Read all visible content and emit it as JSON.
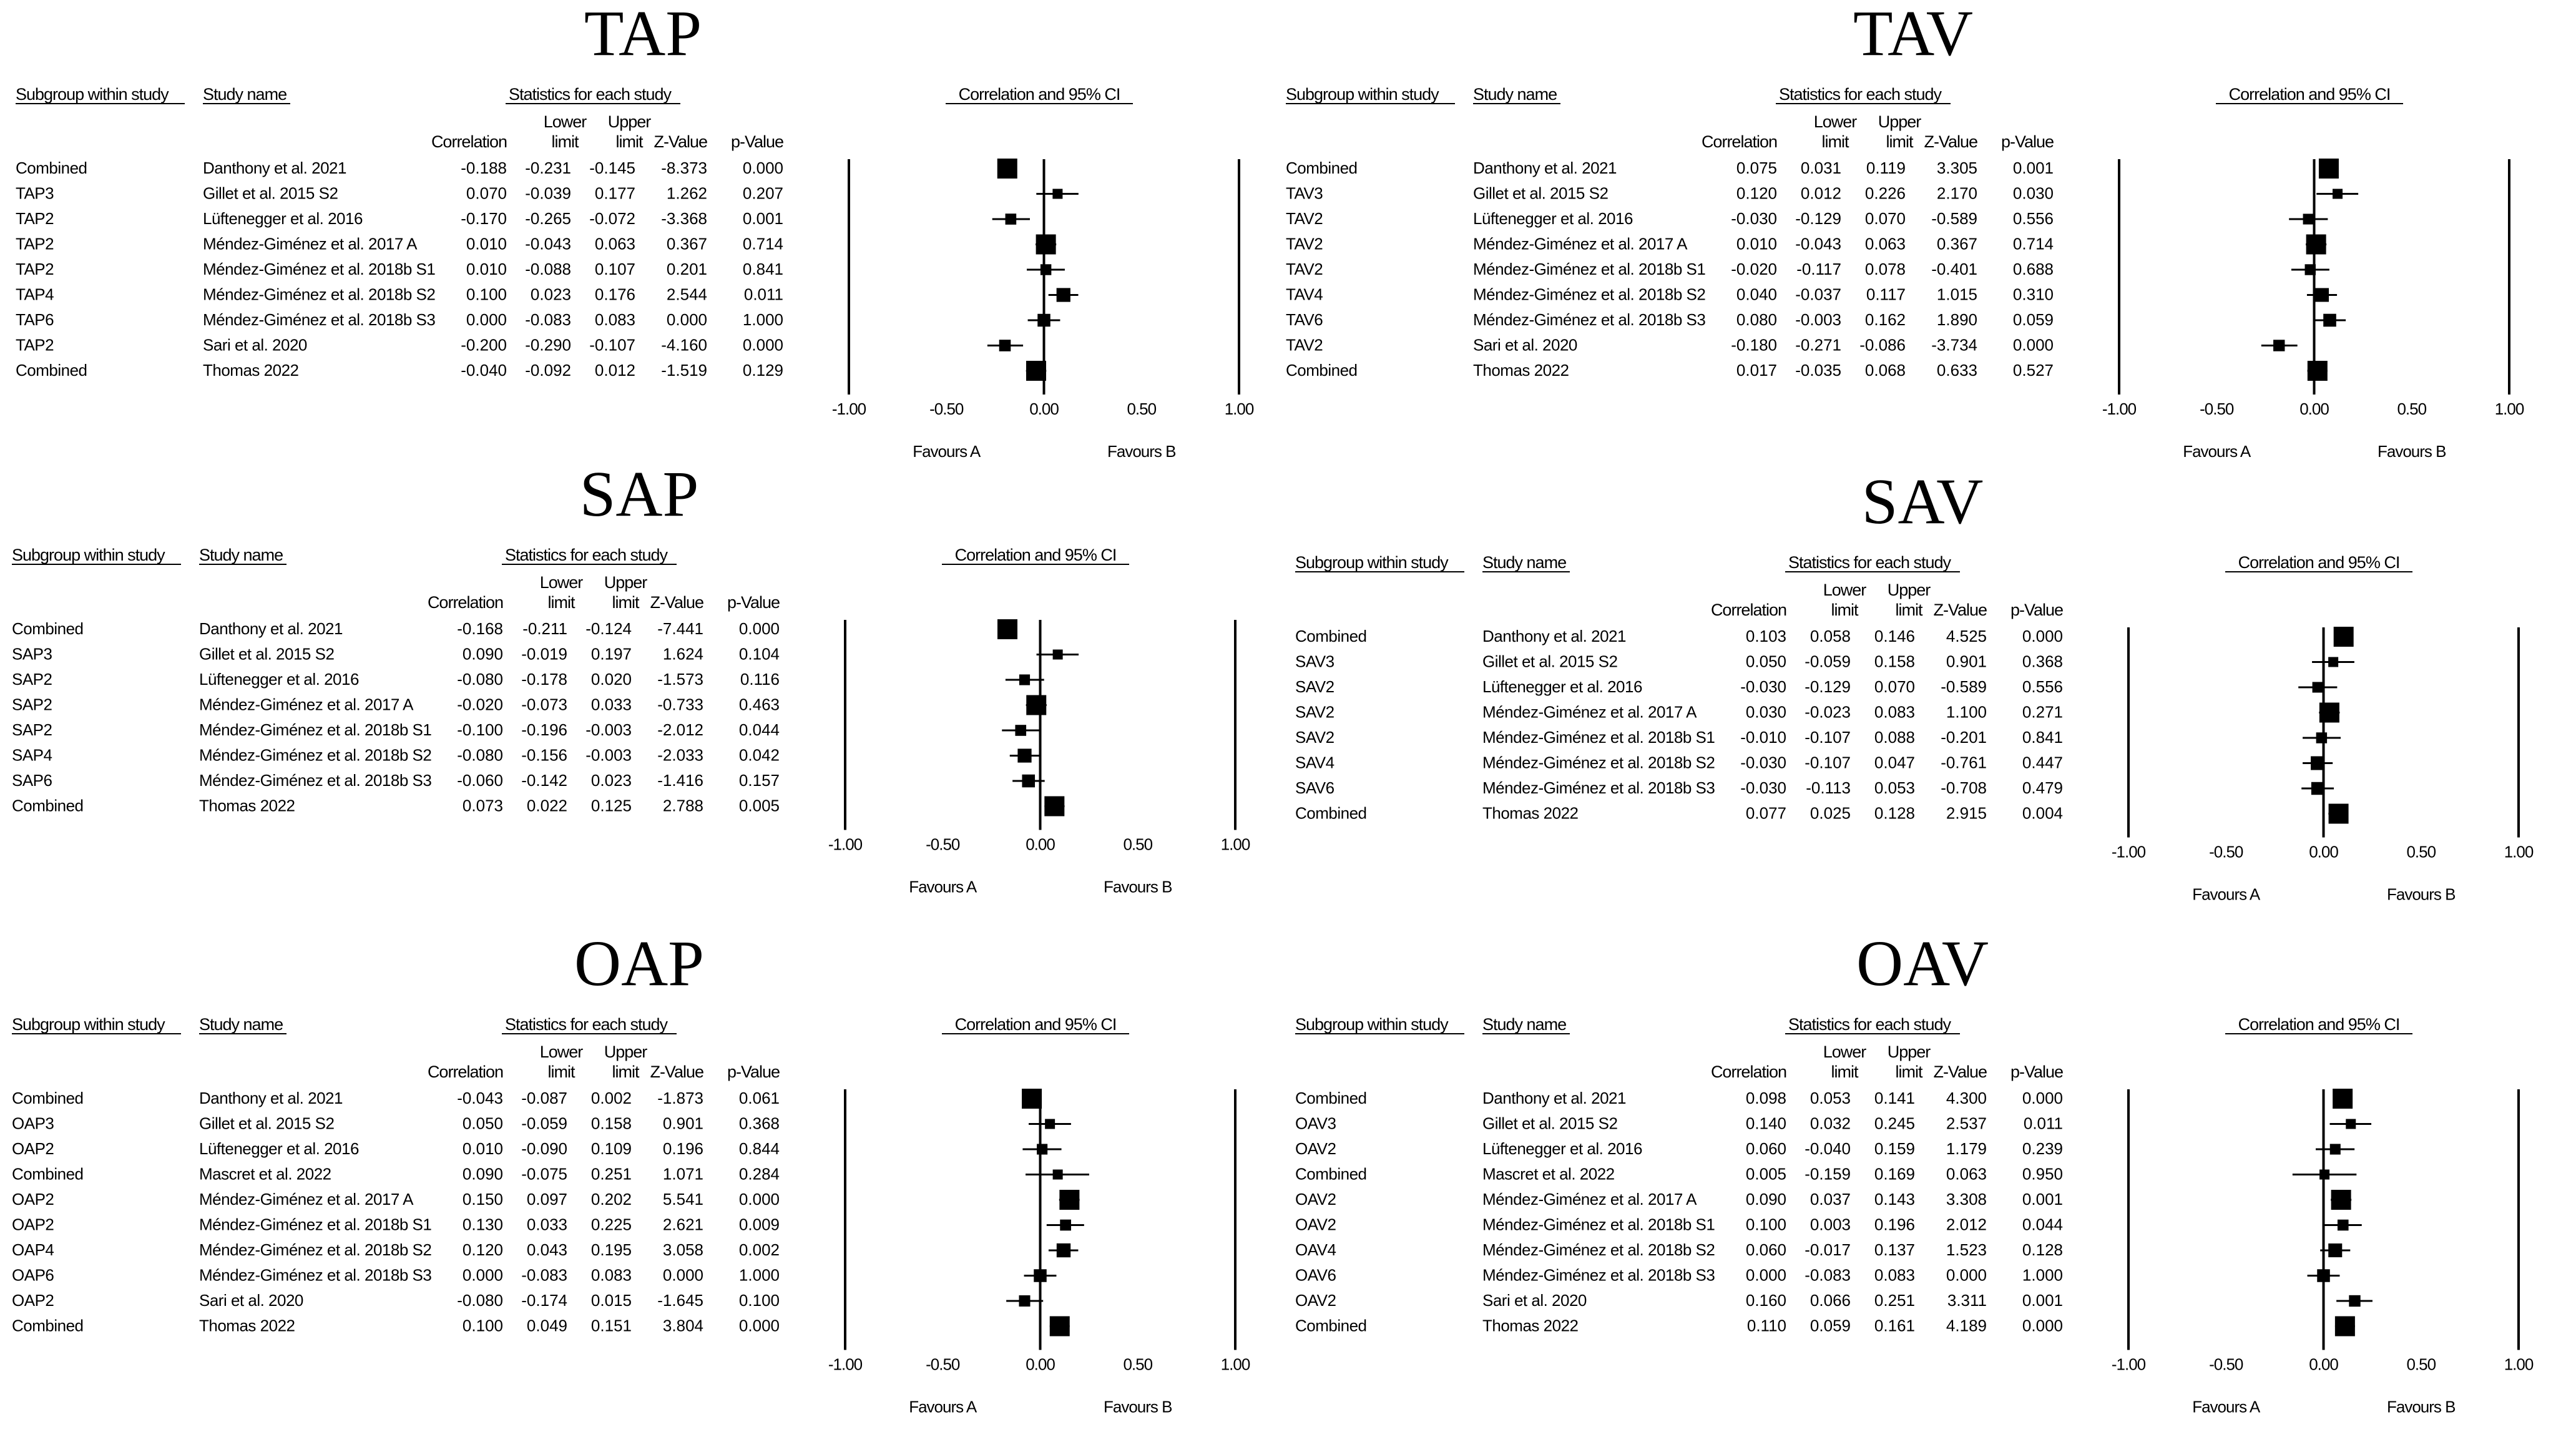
{
  "chart_data": [
    {
      "type": "forest",
      "title": "TAP",
      "headers": {
        "group": "Subgroup within study",
        "study": "Study name",
        "stats": "Statistics for each study",
        "corr": "Correlation",
        "lower_1": "Lower",
        "lower_2": "limit",
        "upper_1": "Upper",
        "upper_2": "limit",
        "z": "Z-Value",
        "p": "p-Value",
        "ci": "Correlation and 95% CI"
      },
      "rows": [
        {
          "group": "Combined",
          "study": "Danthony et al. 2021",
          "corr": -0.188,
          "lower": -0.231,
          "upper": -0.145,
          "z": "-8.373",
          "p": "0.000"
        },
        {
          "group": "TAP3",
          "study": "Gillet et al. 2015 S2",
          "corr": 0.07,
          "lower": -0.039,
          "upper": 0.177,
          "z": "1.262",
          "p": "0.207"
        },
        {
          "group": "TAP2",
          "study": "Lüftenegger et al. 2016",
          "corr": -0.17,
          "lower": -0.265,
          "upper": -0.072,
          "z": "-3.368",
          "p": "0.001"
        },
        {
          "group": "TAP2",
          "study": "Méndez-Giménez et al. 2017 A",
          "corr": 0.01,
          "lower": -0.043,
          "upper": 0.063,
          "z": "0.367",
          "p": "0.714"
        },
        {
          "group": "TAP2",
          "study": "Méndez-Giménez et al. 2018b S1",
          "corr": 0.01,
          "lower": -0.088,
          "upper": 0.107,
          "z": "0.201",
          "p": "0.841"
        },
        {
          "group": "TAP4",
          "study": "Méndez-Giménez et al. 2018b S2",
          "corr": 0.1,
          "lower": 0.023,
          "upper": 0.176,
          "z": "2.544",
          "p": "0.011"
        },
        {
          "group": "TAP6",
          "study": "Méndez-Giménez et al. 2018b S3",
          "corr": 0.0,
          "lower": -0.083,
          "upper": 0.083,
          "z": "0.000",
          "p": "1.000"
        },
        {
          "group": "TAP2",
          "study": "Sari et al. 2020",
          "corr": -0.2,
          "lower": -0.29,
          "upper": -0.107,
          "z": "-4.160",
          "p": "0.000"
        },
        {
          "group": "Combined",
          "study": "Thomas 2022",
          "corr": -0.04,
          "lower": -0.092,
          "upper": 0.012,
          "z": "-1.519",
          "p": "0.129"
        }
      ],
      "axis": {
        "xlim": [
          -1.0,
          1.0
        ],
        "ticks": [
          "-1.00",
          "-0.50",
          "0.00",
          "0.50",
          "1.00"
        ]
      },
      "favours_a": "Favours A",
      "favours_b": "Favours B"
    },
    {
      "type": "forest",
      "title": "TAV",
      "headers": {
        "group": "Subgroup within study",
        "study": "Study name",
        "stats": "Statistics for each study",
        "corr": "Correlation",
        "lower_1": "Lower",
        "lower_2": "limit",
        "upper_1": "Upper",
        "upper_2": "limit",
        "z": "Z-Value",
        "p": "p-Value",
        "ci": "Correlation and 95% CI"
      },
      "rows": [
        {
          "group": "Combined",
          "study": "Danthony et al. 2021",
          "corr": 0.075,
          "lower": 0.031,
          "upper": 0.119,
          "z": "3.305",
          "p": "0.001"
        },
        {
          "group": "TAV3",
          "study": "Gillet et al. 2015 S2",
          "corr": 0.12,
          "lower": 0.012,
          "upper": 0.226,
          "z": "2.170",
          "p": "0.030"
        },
        {
          "group": "TAV2",
          "study": "Lüftenegger et al. 2016",
          "corr": -0.03,
          "lower": -0.129,
          "upper": 0.07,
          "z": "-0.589",
          "p": "0.556"
        },
        {
          "group": "TAV2",
          "study": "Méndez-Giménez et al. 2017 A",
          "corr": 0.01,
          "lower": -0.043,
          "upper": 0.063,
          "z": "0.367",
          "p": "0.714"
        },
        {
          "group": "TAV2",
          "study": "Méndez-Giménez et al. 2018b S1",
          "corr": -0.02,
          "lower": -0.117,
          "upper": 0.078,
          "z": "-0.401",
          "p": "0.688"
        },
        {
          "group": "TAV4",
          "study": "Méndez-Giménez et al. 2018b S2",
          "corr": 0.04,
          "lower": -0.037,
          "upper": 0.117,
          "z": "1.015",
          "p": "0.310"
        },
        {
          "group": "TAV6",
          "study": "Méndez-Giménez et al. 2018b S3",
          "corr": 0.08,
          "lower": -0.003,
          "upper": 0.162,
          "z": "1.890",
          "p": "0.059"
        },
        {
          "group": "TAV2",
          "study": "Sari et al. 2020",
          "corr": -0.18,
          "lower": -0.271,
          "upper": -0.086,
          "z": "-3.734",
          "p": "0.000"
        },
        {
          "group": "Combined",
          "study": "Thomas 2022",
          "corr": 0.017,
          "lower": -0.035,
          "upper": 0.068,
          "z": "0.633",
          "p": "0.527"
        }
      ],
      "axis": {
        "xlim": [
          -1.0,
          1.0
        ],
        "ticks": [
          "-1.00",
          "-0.50",
          "0.00",
          "0.50",
          "1.00"
        ]
      },
      "favours_a": "Favours A",
      "favours_b": "Favours B"
    },
    {
      "type": "forest",
      "title": "SAP",
      "headers": {
        "group": "Subgroup within study",
        "study": "Study name",
        "stats": "Statistics for each study",
        "corr": "Correlation",
        "lower_1": "Lower",
        "lower_2": "limit",
        "upper_1": "Upper",
        "upper_2": "limit",
        "z": "Z-Value",
        "p": "p-Value",
        "ci": "Correlation and 95% CI"
      },
      "rows": [
        {
          "group": "Combined",
          "study": "Danthony et al. 2021",
          "corr": -0.168,
          "lower": -0.211,
          "upper": -0.124,
          "z": "-7.441",
          "p": "0.000"
        },
        {
          "group": "SAP3",
          "study": "Gillet et al. 2015 S2",
          "corr": 0.09,
          "lower": -0.019,
          "upper": 0.197,
          "z": "1.624",
          "p": "0.104"
        },
        {
          "group": "SAP2",
          "study": "Lüftenegger et al. 2016",
          "corr": -0.08,
          "lower": -0.178,
          "upper": 0.02,
          "z": "-1.573",
          "p": "0.116"
        },
        {
          "group": "SAP2",
          "study": "Méndez-Giménez et al. 2017 A",
          "corr": -0.02,
          "lower": -0.073,
          "upper": 0.033,
          "z": "-0.733",
          "p": "0.463"
        },
        {
          "group": "SAP2",
          "study": "Méndez-Giménez et al. 2018b S1",
          "corr": -0.1,
          "lower": -0.196,
          "upper": -0.003,
          "z": "-2.012",
          "p": "0.044"
        },
        {
          "group": "SAP4",
          "study": "Méndez-Giménez et al. 2018b S2",
          "corr": -0.08,
          "lower": -0.156,
          "upper": -0.003,
          "z": "-2.033",
          "p": "0.042"
        },
        {
          "group": "SAP6",
          "study": "Méndez-Giménez et al. 2018b S3",
          "corr": -0.06,
          "lower": -0.142,
          "upper": 0.023,
          "z": "-1.416",
          "p": "0.157"
        },
        {
          "group": "Combined",
          "study": "Thomas 2022",
          "corr": 0.073,
          "lower": 0.022,
          "upper": 0.125,
          "z": "2.788",
          "p": "0.005"
        }
      ],
      "axis": {
        "xlim": [
          -1.0,
          1.0
        ],
        "ticks": [
          "-1.00",
          "-0.50",
          "0.00",
          "0.50",
          "1.00"
        ]
      },
      "favours_a": "Favours A",
      "favours_b": "Favours B"
    },
    {
      "type": "forest",
      "title": "SAV",
      "headers": {
        "group": "Subgroup within study",
        "study": "Study name",
        "stats": "Statistics for each study",
        "corr": "Correlation",
        "lower_1": "Lower",
        "lower_2": "limit",
        "upper_1": "Upper",
        "upper_2": "limit",
        "z": "Z-Value",
        "p": "p-Value",
        "ci": "Correlation and 95% CI"
      },
      "rows": [
        {
          "group": "Combined",
          "study": "Danthony et al. 2021",
          "corr": 0.103,
          "lower": 0.058,
          "upper": 0.146,
          "z": "4.525",
          "p": "0.000"
        },
        {
          "group": "SAV3",
          "study": "Gillet et al. 2015 S2",
          "corr": 0.05,
          "lower": -0.059,
          "upper": 0.158,
          "z": "0.901",
          "p": "0.368"
        },
        {
          "group": "SAV2",
          "study": "Lüftenegger et al. 2016",
          "corr": -0.03,
          "lower": -0.129,
          "upper": 0.07,
          "z": "-0.589",
          "p": "0.556"
        },
        {
          "group": "SAV2",
          "study": "Méndez-Giménez et al. 2017 A",
          "corr": 0.03,
          "lower": -0.023,
          "upper": 0.083,
          "z": "1.100",
          "p": "0.271"
        },
        {
          "group": "SAV2",
          "study": "Méndez-Giménez et al. 2018b S1",
          "corr": -0.01,
          "lower": -0.107,
          "upper": 0.088,
          "z": "-0.201",
          "p": "0.841"
        },
        {
          "group": "SAV4",
          "study": "Méndez-Giménez et al. 2018b S2",
          "corr": -0.03,
          "lower": -0.107,
          "upper": 0.047,
          "z": "-0.761",
          "p": "0.447"
        },
        {
          "group": "SAV6",
          "study": "Méndez-Giménez et al. 2018b S3",
          "corr": -0.03,
          "lower": -0.113,
          "upper": 0.053,
          "z": "-0.708",
          "p": "0.479"
        },
        {
          "group": "Combined",
          "study": "Thomas 2022",
          "corr": 0.077,
          "lower": 0.025,
          "upper": 0.128,
          "z": "2.915",
          "p": "0.004"
        }
      ],
      "axis": {
        "xlim": [
          -1.0,
          1.0
        ],
        "ticks": [
          "-1.00",
          "-0.50",
          "0.00",
          "0.50",
          "1.00"
        ]
      },
      "favours_a": "Favours A",
      "favours_b": "Favours B"
    },
    {
      "type": "forest",
      "title": "OAP",
      "headers": {
        "group": "Subgroup within study",
        "study": "Study name",
        "stats": "Statistics for each study",
        "corr": "Correlation",
        "lower_1": "Lower",
        "lower_2": "limit",
        "upper_1": "Upper",
        "upper_2": "limit",
        "z": "Z-Value",
        "p": "p-Value",
        "ci": "Correlation and 95% CI"
      },
      "rows": [
        {
          "group": "Combined",
          "study": "Danthony et al. 2021",
          "corr": -0.043,
          "lower": -0.087,
          "upper": 0.002,
          "z": "-1.873",
          "p": "0.061"
        },
        {
          "group": "OAP3",
          "study": "Gillet et al. 2015 S2",
          "corr": 0.05,
          "lower": -0.059,
          "upper": 0.158,
          "z": "0.901",
          "p": "0.368"
        },
        {
          "group": "OAP2",
          "study": "Lüftenegger et al. 2016",
          "corr": 0.01,
          "lower": -0.09,
          "upper": 0.109,
          "z": "0.196",
          "p": "0.844"
        },
        {
          "group": "Combined",
          "study": "Mascret et al. 2022",
          "corr": 0.09,
          "lower": -0.075,
          "upper": 0.251,
          "z": "1.071",
          "p": "0.284"
        },
        {
          "group": "OAP2",
          "study": "Méndez-Giménez et al. 2017 A",
          "corr": 0.15,
          "lower": 0.097,
          "upper": 0.202,
          "z": "5.541",
          "p": "0.000"
        },
        {
          "group": "OAP2",
          "study": "Méndez-Giménez et al. 2018b S1",
          "corr": 0.13,
          "lower": 0.033,
          "upper": 0.225,
          "z": "2.621",
          "p": "0.009"
        },
        {
          "group": "OAP4",
          "study": "Méndez-Giménez et al. 2018b S2",
          "corr": 0.12,
          "lower": 0.043,
          "upper": 0.195,
          "z": "3.058",
          "p": "0.002"
        },
        {
          "group": "OAP6",
          "study": "Méndez-Giménez et al. 2018b S3",
          "corr": 0.0,
          "lower": -0.083,
          "upper": 0.083,
          "z": "0.000",
          "p": "1.000"
        },
        {
          "group": "OAP2",
          "study": "Sari et al. 2020",
          "corr": -0.08,
          "lower": -0.174,
          "upper": 0.015,
          "z": "-1.645",
          "p": "0.100"
        },
        {
          "group": "Combined",
          "study": "Thomas 2022",
          "corr": 0.1,
          "lower": 0.049,
          "upper": 0.151,
          "z": "3.804",
          "p": "0.000"
        }
      ],
      "axis": {
        "xlim": [
          -1.0,
          1.0
        ],
        "ticks": [
          "-1.00",
          "-0.50",
          "0.00",
          "0.50",
          "1.00"
        ]
      },
      "favours_a": "Favours A",
      "favours_b": "Favours B"
    },
    {
      "type": "forest",
      "title": "OAV",
      "headers": {
        "group": "Subgroup within study",
        "study": "Study name",
        "stats": "Statistics for each study",
        "corr": "Correlation",
        "lower_1": "Lower",
        "lower_2": "limit",
        "upper_1": "Upper",
        "upper_2": "limit",
        "z": "Z-Value",
        "p": "p-Value",
        "ci": "Correlation and 95% CI"
      },
      "rows": [
        {
          "group": "Combined",
          "study": "Danthony et al. 2021",
          "corr": 0.098,
          "lower": 0.053,
          "upper": 0.141,
          "z": "4.300",
          "p": "0.000"
        },
        {
          "group": "OAV3",
          "study": "Gillet et al. 2015 S2",
          "corr": 0.14,
          "lower": 0.032,
          "upper": 0.245,
          "z": "2.537",
          "p": "0.011"
        },
        {
          "group": "OAV2",
          "study": "Lüftenegger et al. 2016",
          "corr": 0.06,
          "lower": -0.04,
          "upper": 0.159,
          "z": "1.179",
          "p": "0.239"
        },
        {
          "group": "Combined",
          "study": "Mascret et al. 2022",
          "corr": 0.005,
          "lower": -0.159,
          "upper": 0.169,
          "z": "0.063",
          "p": "0.950"
        },
        {
          "group": "OAV2",
          "study": "Méndez-Giménez et al. 2017 A",
          "corr": 0.09,
          "lower": 0.037,
          "upper": 0.143,
          "z": "3.308",
          "p": "0.001"
        },
        {
          "group": "OAV2",
          "study": "Méndez-Giménez et al. 2018b S1",
          "corr": 0.1,
          "lower": 0.003,
          "upper": 0.196,
          "z": "2.012",
          "p": "0.044"
        },
        {
          "group": "OAV4",
          "study": "Méndez-Giménez et al. 2018b S2",
          "corr": 0.06,
          "lower": -0.017,
          "upper": 0.137,
          "z": "1.523",
          "p": "0.128"
        },
        {
          "group": "OAV6",
          "study": "Méndez-Giménez et al. 2018b S3",
          "corr": 0.0,
          "lower": -0.083,
          "upper": 0.083,
          "z": "0.000",
          "p": "1.000"
        },
        {
          "group": "OAV2",
          "study": "Sari et al. 2020",
          "corr": 0.16,
          "lower": 0.066,
          "upper": 0.251,
          "z": "3.311",
          "p": "0.001"
        },
        {
          "group": "Combined",
          "study": "Thomas 2022",
          "corr": 0.11,
          "lower": 0.059,
          "upper": 0.161,
          "z": "4.189",
          "p": "0.000"
        }
      ],
      "axis": {
        "xlim": [
          -1.0,
          1.0
        ],
        "ticks": [
          "-1.00",
          "-0.50",
          "0.00",
          "0.50",
          "1.00"
        ]
      },
      "favours_a": "Favours A",
      "favours_b": "Favours B"
    }
  ]
}
